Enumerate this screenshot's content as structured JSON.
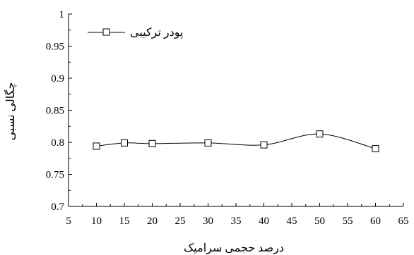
{
  "chart_data": {
    "type": "line",
    "xlabel": "درصد حجمی سرامیک",
    "ylabel": "چگالی نسبی",
    "xlim": [
      5,
      65
    ],
    "ylim": [
      0.7,
      1.0
    ],
    "x_ticks": [
      5,
      10,
      15,
      20,
      25,
      30,
      35,
      40,
      45,
      50,
      55,
      60,
      65
    ],
    "y_ticks": [
      0.7,
      0.75,
      0.8,
      0.85,
      0.9,
      0.95,
      1.0
    ],
    "x_tick_labels": [
      "5",
      "10",
      "15",
      "20",
      "25",
      "30",
      "35",
      "40",
      "45",
      "50",
      "55",
      "60",
      "65"
    ],
    "y_tick_labels": [
      "0.7",
      "0.75",
      "0.8",
      "0.85",
      "0.9",
      "0.95",
      "1"
    ],
    "grid": false,
    "legend_position": "top-left",
    "series": [
      {
        "name": "پودر ترکیبی",
        "marker": "square-open",
        "smooth": true,
        "color": "#000000",
        "x": [
          10,
          15,
          20,
          30,
          40,
          50,
          60
        ],
        "y": [
          0.794,
          0.799,
          0.798,
          0.799,
          0.796,
          0.813,
          0.79
        ]
      }
    ]
  }
}
